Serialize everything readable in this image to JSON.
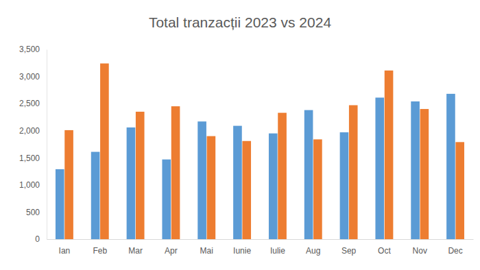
{
  "chart_data": {
    "type": "bar",
    "title": "Total tranzacții 2023 vs 2024",
    "categories": [
      "Ian",
      "Feb",
      "Mar",
      "Apr",
      "Mai",
      "Iunie",
      "Iulie",
      "Aug",
      "Sep",
      "Oct",
      "Nov",
      "Dec"
    ],
    "series": [
      {
        "color": "#5b9bd5",
        "values": [
          1290,
          1610,
          2060,
          1470,
          2170,
          2090,
          1950,
          2380,
          1970,
          2610,
          2540,
          2680
        ]
      },
      {
        "color": "#ed7d31",
        "values": [
          2010,
          3240,
          2350,
          2450,
          1900,
          1810,
          2330,
          1840,
          2470,
          3110,
          2400,
          1790
        ]
      }
    ],
    "ylim": [
      0,
      3500
    ],
    "yticks": [
      0,
      500,
      {
        "value": 1000,
        "label": "1,000"
      },
      {
        "value": 1500,
        "label": "1,500"
      },
      {
        "value": 2000,
        "label": "2,000"
      },
      {
        "value": 2500,
        "label": "2,500"
      },
      {
        "value": 3000,
        "label": "3,000"
      },
      {
        "value": 3500,
        "label": "3,500"
      }
    ],
    "grid": false
  }
}
